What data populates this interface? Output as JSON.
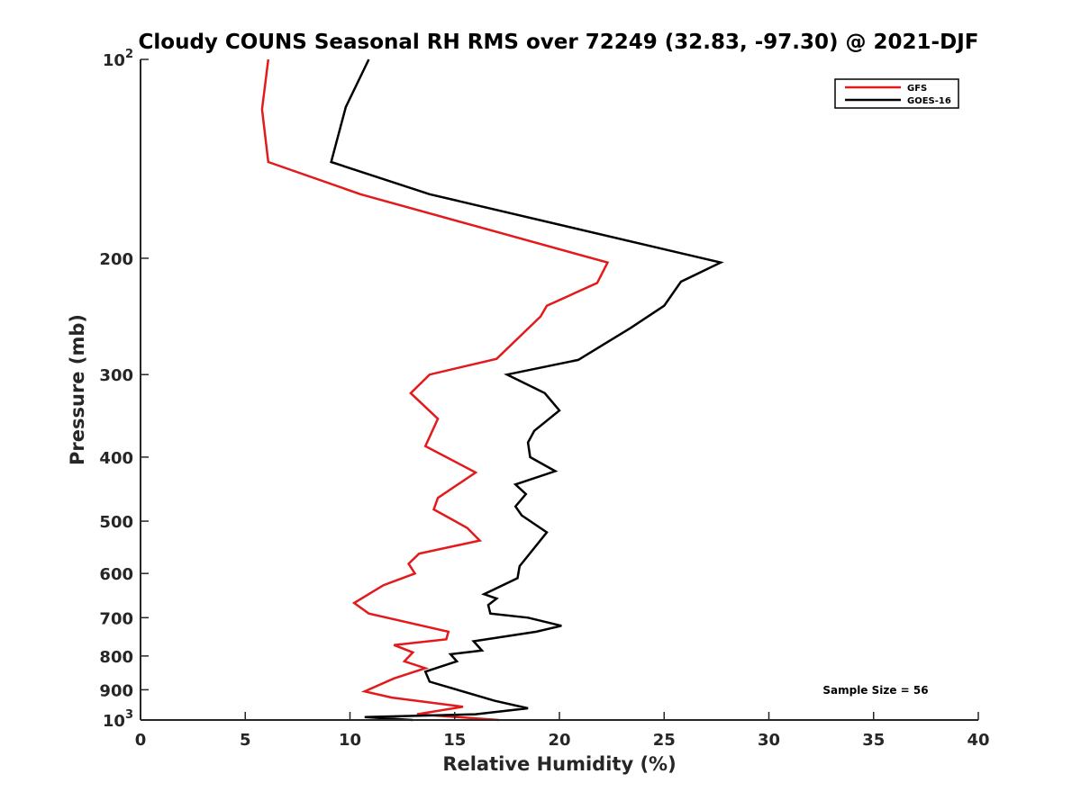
{
  "chart_data": {
    "type": "line",
    "title": "Cloudy COUNS Seasonal RH RMS over 72249 (32.83, -97.30) @ 2021-DJF",
    "xlabel": "Relative Humidity (%)",
    "ylabel": "Pressure (mb)",
    "xlim": [
      0,
      40
    ],
    "ylim": [
      100,
      1000
    ],
    "y_scale": "log",
    "y_reversed": true,
    "x_ticks": [
      "0",
      "5",
      "10",
      "15",
      "20",
      "25",
      "30",
      "35",
      "40"
    ],
    "y_ticks": [
      {
        "value": 100,
        "base": "10",
        "exp": "2"
      },
      {
        "value": 200,
        "label": "200"
      },
      {
        "value": 300,
        "label": "300"
      },
      {
        "value": 400,
        "label": "400"
      },
      {
        "value": 500,
        "label": "500"
      },
      {
        "value": 600,
        "label": "600"
      },
      {
        "value": 700,
        "label": "700"
      },
      {
        "value": 800,
        "label": "800"
      },
      {
        "value": 900,
        "label": "900"
      },
      {
        "value": 1000,
        "base": "10",
        "exp": "3"
      }
    ],
    "legend_position": "top-right",
    "annotation": "Sample Size = 56",
    "series": [
      {
        "name": "GFS",
        "color": "#e31a1c",
        "x": [
          6.1,
          5.8,
          6.1,
          10.5,
          22.3,
          21.8,
          19.4,
          19.1,
          17.0,
          13.8,
          12.9,
          14.2,
          13.6,
          16.0,
          14.2,
          14.0,
          15.6,
          16.2,
          13.3,
          12.8,
          13.1,
          11.6,
          10.2,
          10.9,
          14.7,
          14.6,
          12.1,
          13.0,
          12.6,
          13.6,
          12.1,
          10.7,
          12.0,
          15.4,
          13.2,
          17.1
        ],
        "y": [
          100,
          119,
          143,
          160,
          203,
          218,
          236,
          245,
          284,
          300,
          320,
          350,
          385,
          422,
          461,
          480,
          512,
          535,
          560,
          580,
          600,
          625,
          665,
          690,
          735,
          755,
          770,
          790,
          815,
          835,
          865,
          905,
          925,
          955,
          980,
          1000
        ]
      },
      {
        "name": "GOES-16",
        "color": "#000000",
        "x": [
          10.9,
          9.8,
          9.1,
          13.8,
          27.7,
          25.8,
          25.0,
          23.4,
          20.9,
          17.5,
          19.3,
          20.0,
          18.8,
          18.5,
          18.6,
          19.8,
          17.9,
          18.4,
          17.9,
          18.2,
          19.4,
          18.1,
          18.0,
          16.4,
          17.0,
          16.6,
          16.7,
          18.5,
          20.1,
          18.9,
          15.9,
          16.3,
          14.8,
          15.1,
          13.6,
          13.8,
          16.9,
          18.5,
          16.0,
          10.7,
          13.0
        ],
        "y": [
          100,
          118,
          143,
          160,
          203,
          217,
          236,
          255,
          285,
          300,
          320,
          340,
          365,
          380,
          400,
          420,
          440,
          455,
          475,
          490,
          520,
          585,
          610,
          645,
          655,
          670,
          690,
          700,
          720,
          735,
          760,
          785,
          795,
          815,
          845,
          875,
          935,
          960,
          980,
          990,
          1000
        ]
      }
    ]
  }
}
